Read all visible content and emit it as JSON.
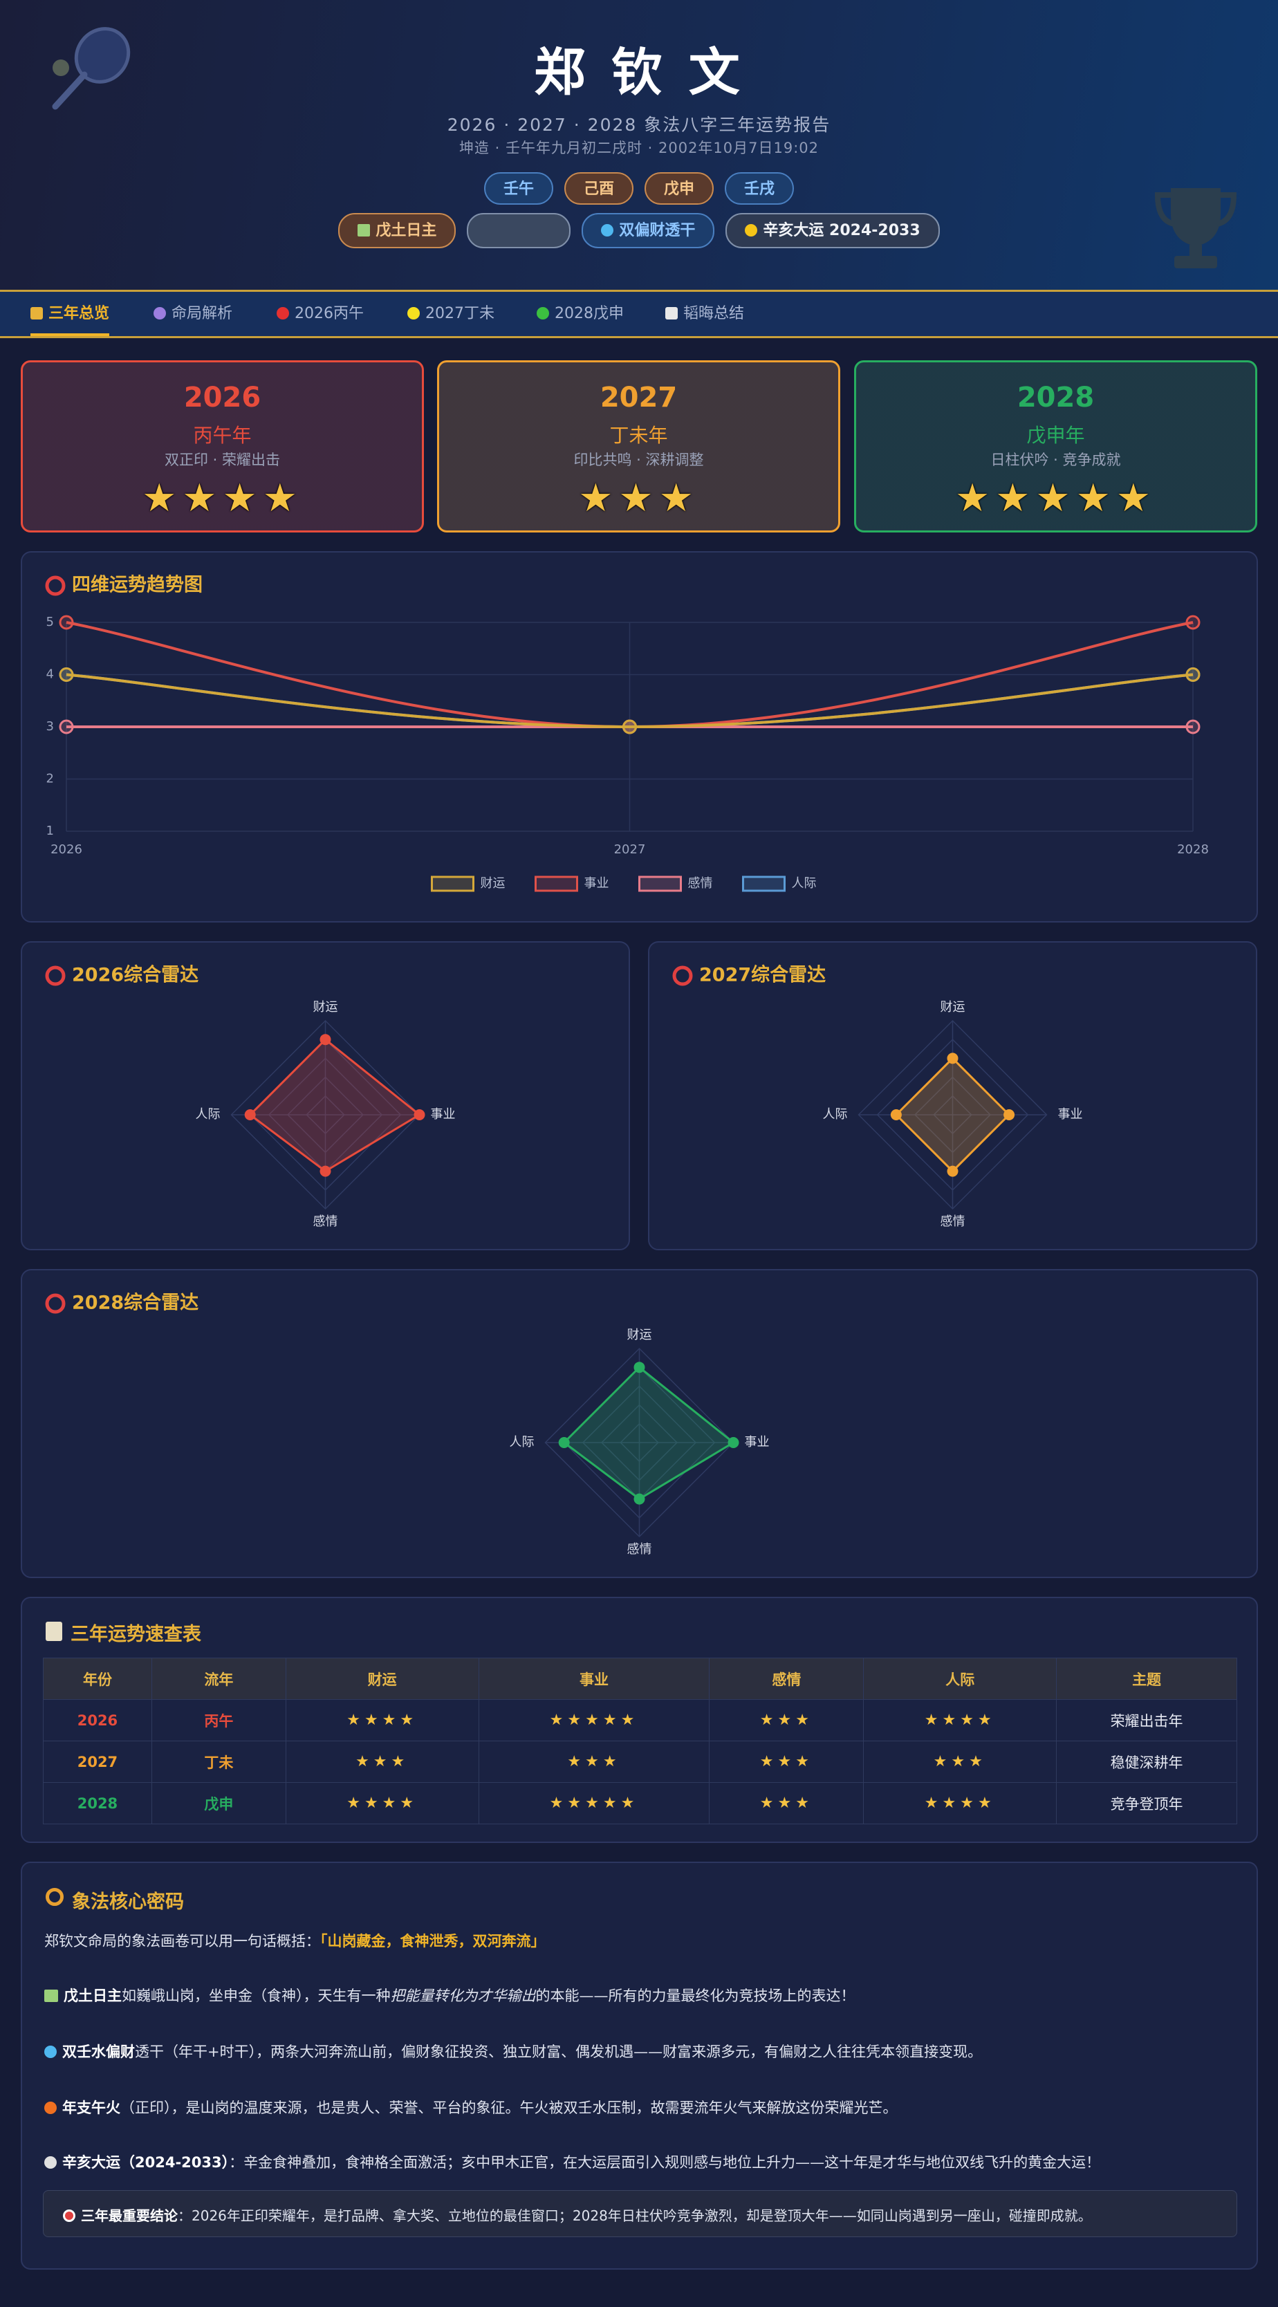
{
  "header": {
    "title": "郑 钦 文",
    "subtitle": "2026 · 2027 · 2028 象法八字三年运势报告",
    "birth": "坤造 · 壬午年九月初二戌时 · 2002年10月7日19:02",
    "pillars": [
      "壬午",
      "己酉",
      "戊申",
      "壬戌"
    ],
    "tags": [
      "戊土日主",
      "双偏财透干",
      "辛亥大运 2024-2033"
    ]
  },
  "nav": [
    "三年总览",
    "命局解析",
    "2026丙午",
    "2027丁未",
    "2028戊申",
    "韬晦总结"
  ],
  "year_cards": [
    {
      "year": "2026",
      "ganzhi": "丙午年",
      "desc": "双正印 · 荣耀出击",
      "stars": 4,
      "color": "#e74c3c"
    },
    {
      "year": "2027",
      "ganzhi": "丁未年",
      "desc": "印比共鸣 · 深耕调整",
      "stars": 3,
      "color": "#f0a030"
    },
    {
      "year": "2028",
      "ganzhi": "戊申年",
      "desc": "日柱伏吟 · 竞争成就",
      "stars": 5,
      "color": "#27ae60"
    }
  ],
  "chart_data": [
    {
      "type": "line",
      "title": "四维运势趋势图",
      "categories": [
        "2026",
        "2027",
        "2028"
      ],
      "ylim": [
        1,
        5
      ],
      "yticks": [
        1,
        2,
        3,
        4,
        5
      ],
      "grid": true,
      "legend": "bottom",
      "series": [
        {
          "name": "财运",
          "color": "#d4a83a",
          "values": [
            4,
            3,
            4
          ]
        },
        {
          "name": "事业",
          "color": "#e0524a",
          "values": [
            5,
            3,
            5
          ]
        },
        {
          "name": "感情",
          "color": "#e87c8a",
          "values": [
            3,
            3,
            3
          ]
        },
        {
          "name": "人际",
          "color": "#5b9bd5",
          "values": [
            4,
            3,
            4
          ]
        }
      ]
    },
    {
      "type": "radar",
      "title": "2026综合雷达",
      "axes": [
        "财运",
        "事业",
        "感情",
        "人际"
      ],
      "values": [
        4,
        5,
        3,
        4
      ],
      "color": "#e74c3c",
      "rlim": [
        0,
        5
      ],
      "rticks": [
        1,
        2,
        3,
        4,
        5
      ]
    },
    {
      "type": "radar",
      "title": "2027综合雷达",
      "axes": [
        "财运",
        "事业",
        "感情",
        "人际"
      ],
      "values": [
        3,
        3,
        3,
        3
      ],
      "color": "#f0a030",
      "rlim": [
        0,
        5
      ],
      "rticks": [
        1,
        2,
        3,
        4,
        5
      ]
    },
    {
      "type": "radar",
      "title": "2028综合雷达",
      "axes": [
        "财运",
        "事业",
        "感情",
        "人际"
      ],
      "values": [
        4,
        5,
        3,
        4
      ],
      "color": "#27ae60",
      "rlim": [
        0,
        5
      ],
      "rticks": [
        1,
        2,
        3,
        4,
        5
      ]
    }
  ],
  "table": {
    "title": "三年运势速查表",
    "headers": [
      "年份",
      "流年",
      "财运",
      "事业",
      "感情",
      "人际",
      "主题"
    ],
    "rows": [
      [
        "2026",
        "丙午",
        4,
        5,
        3,
        4,
        "荣耀出击年"
      ],
      [
        "2027",
        "丁未",
        3,
        3,
        3,
        3,
        "稳健深耕年"
      ],
      [
        "2028",
        "戊申",
        4,
        5,
        3,
        4,
        "竞争登顶年"
      ]
    ]
  },
  "core": {
    "title": "象法核心密码",
    "intro": "郑钦文命局的象法画卷可以用一句话概括：",
    "motto": "「山岗藏金，食神泄秀，双河奔流」",
    "paragraphs": [
      {
        "lead": "戊土日主",
        "text": "如巍峨山岗，坐申金（食神），天生有一种",
        "em": "把能量转化为才华输出",
        "tail": "的本能——所有的力量最终化为竞技场上的表达！"
      },
      {
        "lead": "双壬水偏财",
        "text": "透干（年干+时干），两条大河奔流山前，偏财象征投资、独立财富、偶发机遇——财富来源多元，有偏财之人往往凭本领直接变现。"
      },
      {
        "lead": "年支午火",
        "text": "（正印），是山岗的温度来源，也是贵人、荣誉、平台的象征。午火被双壬水压制，故需要流年火气来解放这份荣耀光芒。"
      },
      {
        "lead": "辛亥大运（2024-2033）",
        "text": "：辛金食神叠加，食神格全面激活；亥中甲木正官，在大运层面引入规则感与地位上升力——这十年是才华与地位双线飞升的黄金大运！"
      }
    ],
    "conclusion": {
      "lead": "三年最重要结论",
      "text": "：2026年正印荣耀年，是打品牌、拿大奖、立地位的最佳窗口；2028年日柱伏吟竞争激烈，却是登顶大年——如同山岗遇到另一座山，碰撞即成就。"
    }
  }
}
